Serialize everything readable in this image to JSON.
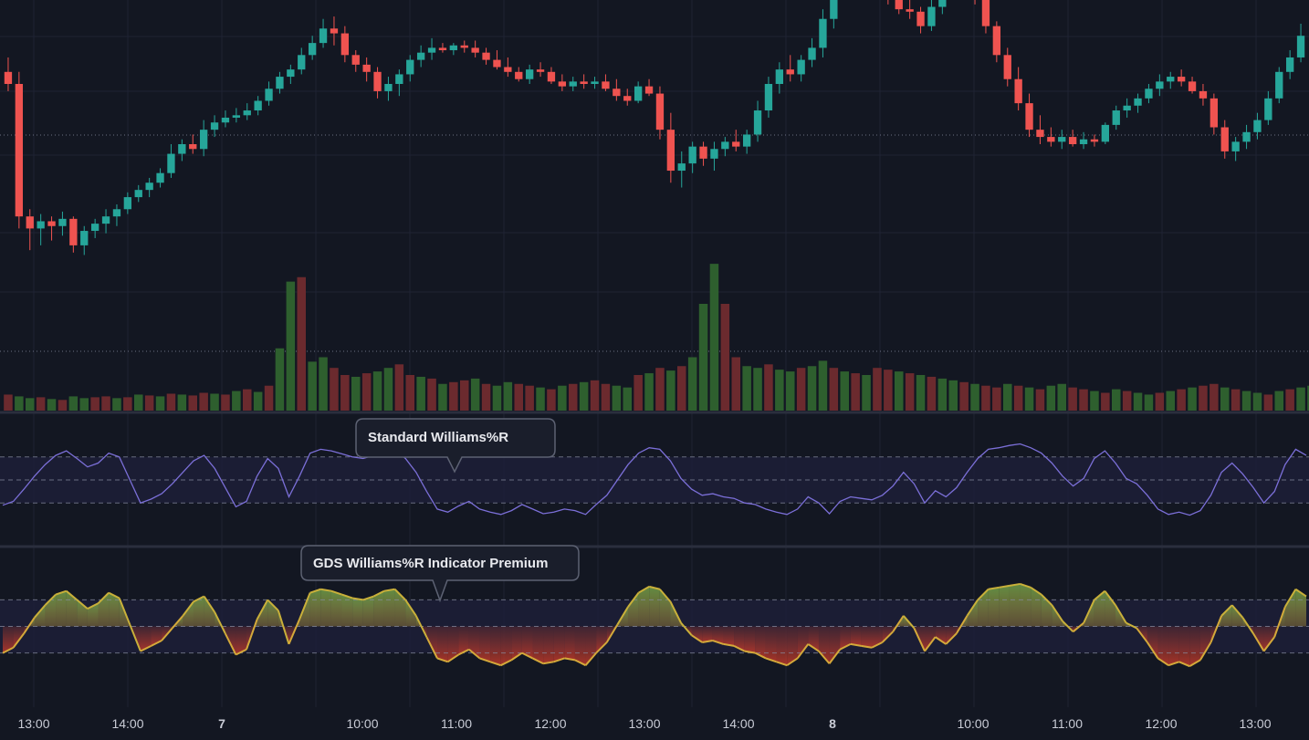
{
  "chart_data": [
    {
      "type": "candlestick",
      "panel": "price",
      "values": [
        [
          8.0,
          8.6,
          7.2,
          7.5
        ],
        [
          7.5,
          8.0,
          1.5,
          2.0
        ],
        [
          2.0,
          2.3,
          0.6,
          1.5
        ],
        [
          1.5,
          2.1,
          0.8,
          1.8
        ],
        [
          1.8,
          2.0,
          1.0,
          1.6
        ],
        [
          1.6,
          2.2,
          1.2,
          1.9
        ],
        [
          1.9,
          2.0,
          0.5,
          0.8
        ],
        [
          0.8,
          1.6,
          0.4,
          1.4
        ],
        [
          1.4,
          1.9,
          1.1,
          1.7
        ],
        [
          1.7,
          2.3,
          1.3,
          2.0
        ],
        [
          2.0,
          2.5,
          1.6,
          2.3
        ],
        [
          2.3,
          3.0,
          2.1,
          2.8
        ],
        [
          2.8,
          3.3,
          2.6,
          3.1
        ],
        [
          3.1,
          3.6,
          2.8,
          3.4
        ],
        [
          3.4,
          4.0,
          3.2,
          3.8
        ],
        [
          3.8,
          5.0,
          3.6,
          4.6
        ],
        [
          4.6,
          5.2,
          4.3,
          5.0
        ],
        [
          5.0,
          5.4,
          4.6,
          4.8
        ],
        [
          4.8,
          6.0,
          4.5,
          5.6
        ],
        [
          5.6,
          6.2,
          5.3,
          5.9
        ],
        [
          5.9,
          6.4,
          5.7,
          6.1
        ],
        [
          6.1,
          6.5,
          5.9,
          6.2
        ],
        [
          6.2,
          6.7,
          6.0,
          6.4
        ],
        [
          6.4,
          7.0,
          6.2,
          6.8
        ],
        [
          6.8,
          7.6,
          6.6,
          7.3
        ],
        [
          7.3,
          8.0,
          7.1,
          7.8
        ],
        [
          7.8,
          8.3,
          7.5,
          8.1
        ],
        [
          8.1,
          9.0,
          7.9,
          8.7
        ],
        [
          8.7,
          9.5,
          8.5,
          9.2
        ],
        [
          9.2,
          10.2,
          9.0,
          9.8
        ],
        [
          9.8,
          10.3,
          9.1,
          9.6
        ],
        [
          9.6,
          9.9,
          8.4,
          8.7
        ],
        [
          8.7,
          8.9,
          8.0,
          8.3
        ],
        [
          8.3,
          8.6,
          7.6,
          8.0
        ],
        [
          8.0,
          8.2,
          6.9,
          7.2
        ],
        [
          7.2,
          7.8,
          6.8,
          7.5
        ],
        [
          7.5,
          8.1,
          7.0,
          7.9
        ],
        [
          7.9,
          8.7,
          7.6,
          8.5
        ],
        [
          8.5,
          9.1,
          8.2,
          8.8
        ],
        [
          8.8,
          9.4,
          8.5,
          9.0
        ],
        [
          9.0,
          9.2,
          8.8,
          8.9
        ],
        [
          8.9,
          9.2,
          8.7,
          9.1
        ],
        [
          9.1,
          9.3,
          8.8,
          9.0
        ],
        [
          9.0,
          9.3,
          8.6,
          8.8
        ],
        [
          8.8,
          9.0,
          8.3,
          8.5
        ],
        [
          8.5,
          8.9,
          8.1,
          8.2
        ],
        [
          8.2,
          8.6,
          7.8,
          8.0
        ],
        [
          8.0,
          8.2,
          7.6,
          7.7
        ],
        [
          7.7,
          8.3,
          7.5,
          8.1
        ],
        [
          8.1,
          8.4,
          7.8,
          8.0
        ],
        [
          8.0,
          8.2,
          7.5,
          7.6
        ],
        [
          7.6,
          7.9,
          7.2,
          7.4
        ],
        [
          7.4,
          7.8,
          7.2,
          7.6
        ],
        [
          7.6,
          7.9,
          7.3,
          7.5
        ],
        [
          7.5,
          7.8,
          7.3,
          7.6
        ],
        [
          7.6,
          7.9,
          7.2,
          7.3
        ],
        [
          7.3,
          7.7,
          6.8,
          7.0
        ],
        [
          7.0,
          7.3,
          6.6,
          6.8
        ],
        [
          6.8,
          7.6,
          6.7,
          7.4
        ],
        [
          7.4,
          7.7,
          7.0,
          7.1
        ],
        [
          7.1,
          7.4,
          5.2,
          5.6
        ],
        [
          5.6,
          6.3,
          3.4,
          3.9
        ],
        [
          3.9,
          4.7,
          3.2,
          4.2
        ],
        [
          4.2,
          5.1,
          3.8,
          4.9
        ],
        [
          4.9,
          5.1,
          4.1,
          4.4
        ],
        [
          4.4,
          5.1,
          3.9,
          4.8
        ],
        [
          4.8,
          5.3,
          4.5,
          5.1
        ],
        [
          5.1,
          5.6,
          4.7,
          4.9
        ],
        [
          4.9,
          5.6,
          4.6,
          5.4
        ],
        [
          5.4,
          6.8,
          5.1,
          6.4
        ],
        [
          6.4,
          7.8,
          6.1,
          7.5
        ],
        [
          7.5,
          8.4,
          7.1,
          8.1
        ],
        [
          8.1,
          8.7,
          7.6,
          7.9
        ],
        [
          7.9,
          8.7,
          7.6,
          8.5
        ],
        [
          8.5,
          9.4,
          8.2,
          9.0
        ],
        [
          9.0,
          10.6,
          8.6,
          10.2
        ],
        [
          10.2,
          11.6,
          9.8,
          11.3
        ],
        [
          11.3,
          12.2,
          11.0,
          11.9
        ],
        [
          11.9,
          12.3,
          11.4,
          11.7
        ],
        [
          11.7,
          12.4,
          11.5,
          12.0
        ],
        [
          12.0,
          12.2,
          11.3,
          11.5
        ],
        [
          11.5,
          11.8,
          10.8,
          11.0
        ],
        [
          11.0,
          11.4,
          10.4,
          10.6
        ],
        [
          10.6,
          11.0,
          10.2,
          10.5
        ],
        [
          10.5,
          10.7,
          9.6,
          9.9
        ],
        [
          9.9,
          11.0,
          9.7,
          10.7
        ],
        [
          10.7,
          12.0,
          10.4,
          11.7
        ],
        [
          11.7,
          12.0,
          11.3,
          11.7
        ],
        [
          11.7,
          11.8,
          11.1,
          11.4
        ],
        [
          11.4,
          11.6,
          10.8,
          11.0
        ],
        [
          11.0,
          11.2,
          9.6,
          9.9
        ],
        [
          9.9,
          10.1,
          8.4,
          8.7
        ],
        [
          8.7,
          9.0,
          7.4,
          7.7
        ],
        [
          7.7,
          8.2,
          6.4,
          6.7
        ],
        [
          6.7,
          7.1,
          5.3,
          5.6
        ],
        [
          5.6,
          6.2,
          5.0,
          5.3
        ],
        [
          5.3,
          5.7,
          4.9,
          5.1
        ],
        [
          5.1,
          5.6,
          4.8,
          5.3
        ],
        [
          5.3,
          5.6,
          4.9,
          5.0
        ],
        [
          5.0,
          5.5,
          4.8,
          5.2
        ],
        [
          5.2,
          5.4,
          4.9,
          5.1
        ],
        [
          5.1,
          5.9,
          5.0,
          5.8
        ],
        [
          5.8,
          6.6,
          5.6,
          6.4
        ],
        [
          6.4,
          6.9,
          6.1,
          6.6
        ],
        [
          6.6,
          7.1,
          6.3,
          6.9
        ],
        [
          6.9,
          7.5,
          6.7,
          7.3
        ],
        [
          7.3,
          7.9,
          7.0,
          7.6
        ],
        [
          7.6,
          8.0,
          7.3,
          7.8
        ],
        [
          7.8,
          8.1,
          7.4,
          7.6
        ],
        [
          7.6,
          7.8,
          7.1,
          7.2
        ],
        [
          7.2,
          7.5,
          6.6,
          6.9
        ],
        [
          6.9,
          7.1,
          5.4,
          5.7
        ],
        [
          5.7,
          6.0,
          4.4,
          4.7
        ],
        [
          4.7,
          5.3,
          4.3,
          5.1
        ],
        [
          5.1,
          5.8,
          4.8,
          5.5
        ],
        [
          5.5,
          6.3,
          5.2,
          6.0
        ],
        [
          6.0,
          7.2,
          5.8,
          6.9
        ],
        [
          6.9,
          8.2,
          6.7,
          8.0
        ],
        [
          8.0,
          8.9,
          7.7,
          8.6
        ],
        [
          8.6,
          10.0,
          8.4,
          9.5
        ]
      ]
    },
    {
      "type": "bar",
      "panel": "volume",
      "values": [
        18,
        16,
        14,
        15,
        13,
        12,
        16,
        14,
        15,
        16,
        14,
        15,
        18,
        17,
        16,
        19,
        18,
        17,
        20,
        19,
        18,
        22,
        24,
        21,
        28,
        70,
        145,
        150,
        55,
        60,
        48,
        40,
        38,
        42,
        44,
        48,
        52,
        40,
        38,
        36,
        30,
        32,
        34,
        36,
        30,
        28,
        32,
        30,
        28,
        26,
        24,
        28,
        30,
        32,
        34,
        30,
        28,
        26,
        40,
        42,
        48,
        45,
        50,
        60,
        120,
        165,
        120,
        60,
        50,
        48,
        52,
        46,
        44,
        48,
        50,
        56,
        48,
        44,
        42,
        40,
        48,
        46,
        44,
        42,
        40,
        38,
        36,
        34,
        32,
        30,
        28,
        26,
        30,
        28,
        26,
        24,
        28,
        30,
        26,
        24,
        22,
        20,
        24,
        22,
        20,
        18,
        20,
        22,
        24,
        26,
        28,
        30,
        26,
        24,
        22,
        20,
        18,
        22,
        24,
        26,
        28,
        30,
        26,
        24
      ],
      "up": [
        0,
        1,
        1,
        0,
        1,
        0,
        1,
        1,
        0,
        0,
        1,
        0,
        1,
        0,
        1,
        0,
        1,
        0,
        0,
        1,
        0,
        1,
        0,
        1,
        0,
        1,
        1,
        0,
        1,
        1,
        0,
        0,
        1,
        0,
        1,
        1,
        0,
        0,
        1,
        0,
        1,
        0,
        0,
        1,
        0,
        1,
        1,
        0,
        0,
        1,
        0,
        1,
        0,
        1,
        0,
        0,
        1,
        1,
        0,
        1,
        0,
        1,
        0,
        1,
        1,
        1,
        0,
        0,
        1,
        1,
        0,
        1,
        1,
        0,
        1,
        1,
        0,
        1,
        0,
        1,
        0,
        0,
        1,
        0,
        1,
        0,
        1,
        1,
        0,
        1,
        0,
        0,
        1,
        0,
        1,
        0,
        1,
        1,
        0,
        0,
        1,
        0,
        1,
        0,
        1,
        1,
        0,
        1,
        0,
        1,
        0,
        0,
        1,
        0,
        1,
        1,
        0,
        1,
        0,
        1,
        1,
        0
      ]
    },
    {
      "type": "line",
      "panel": "williams-standard",
      "name": "Standard Williams%R",
      "ylim": [
        -100,
        0
      ],
      "values": [
        -83,
        -78,
        -62,
        -45,
        -30,
        -18,
        -12,
        -22,
        -33,
        -28,
        -15,
        -20,
        -50,
        -80,
        -75,
        -68,
        -55,
        -40,
        -25,
        -18,
        -35,
        -60,
        -85,
        -78,
        -45,
        -22,
        -35,
        -72,
        -45,
        -15,
        -10,
        -12,
        -16,
        -20,
        -22,
        -18,
        -12,
        -10,
        -22,
        -40,
        -65,
        -88,
        -92,
        -84,
        -78,
        -88,
        -92,
        -95,
        -90,
        -82,
        -88,
        -94,
        -92,
        -88,
        -90,
        -95,
        -82,
        -70,
        -50,
        -30,
        -15,
        -8,
        -10,
        -25,
        -48,
        -62,
        -70,
        -68,
        -72,
        -74,
        -80,
        -82,
        -88,
        -92,
        -95,
        -88,
        -72,
        -80,
        -94,
        -78,
        -72,
        -74,
        -76,
        -70,
        -58,
        -40,
        -55,
        -80,
        -64,
        -72,
        -60,
        -40,
        -22,
        -10,
        -8,
        -5,
        -3,
        -8,
        -15,
        -28,
        -45,
        -58,
        -48,
        -22,
        -12,
        -28,
        -48,
        -55,
        -70,
        -88,
        -95,
        -92,
        -96,
        -90,
        -70,
        -40,
        -28,
        -42,
        -60,
        -80,
        -65,
        -30,
        -10,
        -18
      ]
    },
    {
      "type": "area",
      "panel": "williams-gds",
      "name": "GDS Williams%R Indicator Premium",
      "ylim": [
        -100,
        0
      ],
      "values": [
        -80,
        -74,
        -58,
        -40,
        -26,
        -14,
        -10,
        -20,
        -30,
        -24,
        -12,
        -18,
        -48,
        -78,
        -72,
        -66,
        -52,
        -38,
        -22,
        -16,
        -34,
        -58,
        -82,
        -76,
        -42,
        -20,
        -32,
        -70,
        -42,
        -12,
        -8,
        -10,
        -14,
        -18,
        -20,
        -16,
        -10,
        -8,
        -20,
        -38,
        -62,
        -86,
        -90,
        -82,
        -76,
        -86,
        -90,
        -94,
        -88,
        -80,
        -86,
        -92,
        -90,
        -86,
        -88,
        -94,
        -80,
        -68,
        -48,
        -28,
        -12,
        -5,
        -8,
        -22,
        -46,
        -60,
        -68,
        -66,
        -70,
        -72,
        -78,
        -80,
        -86,
        -90,
        -94,
        -86,
        -70,
        -78,
        -92,
        -76,
        -70,
        -72,
        -74,
        -68,
        -56,
        -38,
        -52,
        -78,
        -62,
        -70,
        -58,
        -38,
        -20,
        -8,
        -6,
        -4,
        -2,
        -6,
        -14,
        -26,
        -44,
        -56,
        -46,
        -20,
        -10,
        -26,
        -46,
        -52,
        -68,
        -86,
        -94,
        -90,
        -95,
        -88,
        -68,
        -38,
        -26,
        -40,
        -58,
        -78,
        -62,
        -28,
        -8,
        -16
      ]
    }
  ],
  "callouts": {
    "standard": "Standard Williams%R",
    "gds": "GDS Williams%R Indicator Premium"
  },
  "time_axis": [
    "13:00",
    "14:00",
    "7",
    "10:00",
    "11:00",
    "12:00",
    "13:00",
    "14:00",
    "8",
    "10:00",
    "11:00",
    "12:00",
    "13:00"
  ],
  "colors": {
    "background": "#131722",
    "grid": "#1f2333",
    "bull": "#26a69a",
    "bear": "#ef5350",
    "vol_bull": "#2e5f2e",
    "vol_bear": "#6b2a2e",
    "williams_line": "#7b6fd8",
    "gds_line_up": "#c9b03a",
    "gds_fill_up": "#6fa04a",
    "gds_fill_down": "#c0392b"
  }
}
